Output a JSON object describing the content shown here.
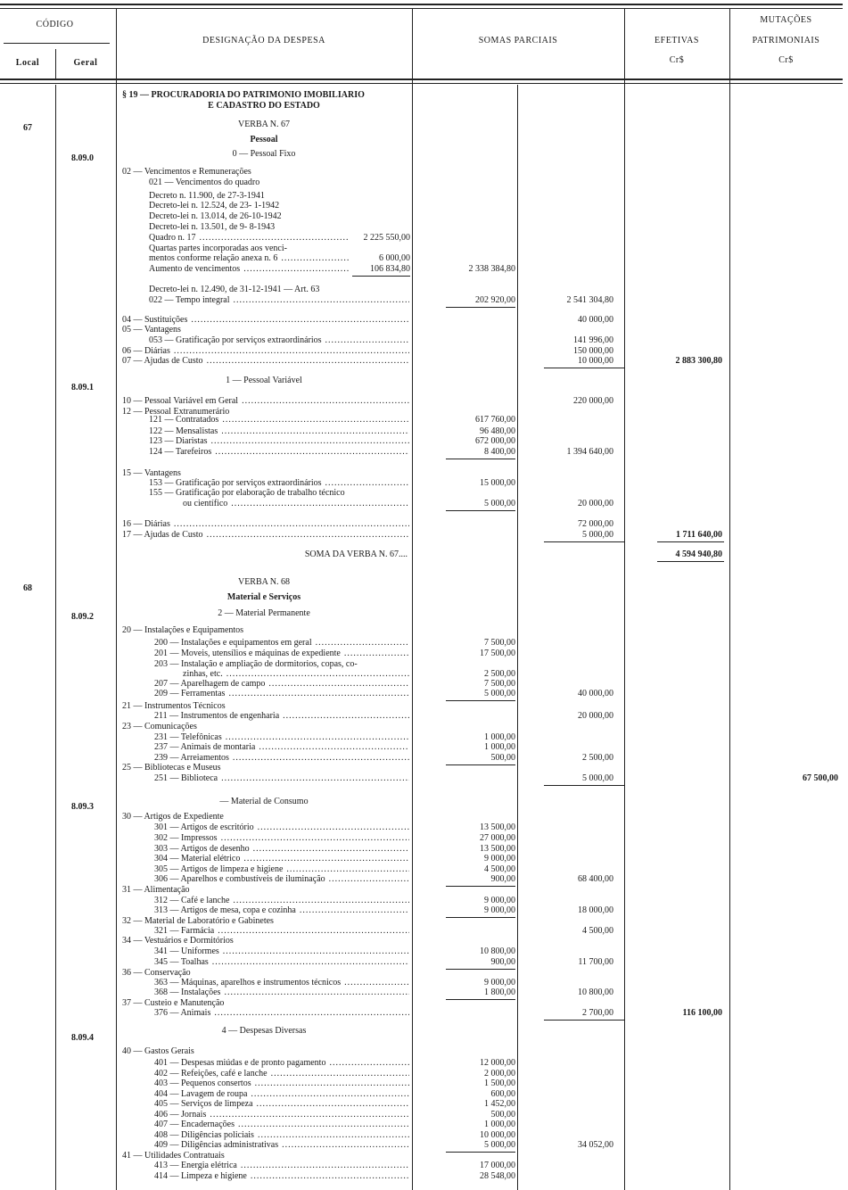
{
  "header": {
    "codigo": "CÓDIGO",
    "local": "Local",
    "geral": "Geral",
    "designacao": "DESIGNAÇÃO DA DESPESA",
    "somas_parciais": "SOMAS PARCIAIS",
    "efetivas": "EFETIVAS",
    "efetivas_unit": "Cr$",
    "mutacoes": "MUTAÇÕES",
    "patrimoniais": "PATRIMONIAIS",
    "mutacoes_unit": "Cr$"
  },
  "codes": {
    "local": [
      "67",
      "68"
    ],
    "geral": [
      "8.09.0",
      "8.09.1",
      "8.09.2",
      "8.09.3",
      "8.09.4"
    ]
  },
  "rows": [
    {
      "text": "§ 19 — PROCURADORIA DO PATRIMONIO IMOBILIARIO",
      "type": "title"
    },
    {
      "text": "E CADASTRO DO ESTADO",
      "type": "centerbold"
    },
    {
      "text": "VERBA N. 67",
      "type": "center"
    },
    {
      "text": "Pessoal",
      "type": "centerbold"
    },
    {
      "text": "0 — Pessoal Fixo",
      "type": "center"
    },
    {
      "text": "02 — Vencimentos e Remunerações",
      "level": 0
    },
    {
      "text": "021 — Vencimentos do quadro",
      "level": 1
    },
    {
      "text": "Decreto n. 11.900, de 27-3-1941",
      "level": 1
    },
    {
      "text": "Decreto-lei n. 12.524, de 23- 1-1942",
      "level": 1
    },
    {
      "text": "Decreto-lei n. 13.014, de 26-10-1942",
      "level": 1
    },
    {
      "text": "Decreto-lei n. 13.501, de 9- 8-1943",
      "level": 1
    },
    {
      "text": "Quadro n. 17",
      "level": 1,
      "dots": true,
      "inner": "2 225 550,00"
    },
    {
      "text": "Quartas partes incorporadas aos venci-",
      "level": 1
    },
    {
      "text": "mentos conforme relação anexa n. 6",
      "level": 1,
      "dots": true,
      "inner": "6 000,00"
    },
    {
      "text": "Aumento de vencimentos",
      "level": 1,
      "dots": true,
      "inner": "106 834,80",
      "sp1": "2 338 384,80"
    },
    {
      "text": "Decreto-lei n. 12.490, de 31-12-1941 — Art. 63",
      "level": 1
    },
    {
      "text": "022 — Tempo integral",
      "level": 1,
      "dots": true,
      "sp1": "202 920,00",
      "sp2": "2 541 304,80"
    },
    {
      "text": "04 — Sustituições",
      "level": 0,
      "dots": true,
      "sp2": "40 000,00"
    },
    {
      "text": "05 — Vantagens",
      "level": 0
    },
    {
      "text": "053 — Gratificação por serviços extraordinários",
      "level": 1,
      "dots": true,
      "sp2": "141 996,00"
    },
    {
      "text": "06 — Diárias",
      "level": 0,
      "dots": true,
      "sp2": "150 000,00"
    },
    {
      "text": "07 — Ajudas de Custo",
      "level": 0,
      "dots": true,
      "sp2": "10 000,00",
      "ef": "2 883 300,80"
    },
    {
      "text": "1 — Pessoal Variável",
      "type": "center"
    },
    {
      "text": "10 — Pessoal Variável em Geral",
      "level": 0,
      "dots": true,
      "sp2": "220 000,00"
    },
    {
      "text": "12 — Pessoal Extranumerário",
      "level": 0
    },
    {
      "text": "121 — Contratados",
      "level": 1,
      "dots": true,
      "sp1": "617 760,00"
    },
    {
      "text": "122 — Mensalistas",
      "level": 1,
      "dots": true,
      "sp1": "96 480,00"
    },
    {
      "text": "123 — Diaristas",
      "level": 1,
      "dots": true,
      "sp1": "672 000,00"
    },
    {
      "text": "124 — Tarefeiros",
      "level": 1,
      "dots": true,
      "sp1": "8 400,00",
      "sp2": "1 394 640,00"
    },
    {
      "text": "15 — Vantagens",
      "level": 0
    },
    {
      "text": "153 — Gratificação por serviços extraordinários",
      "level": 1,
      "dots": true,
      "sp1": "15 000,00"
    },
    {
      "text": "155 — Gratificação por elaboração de trabalho técnico",
      "level": 1
    },
    {
      "text": "ou científico",
      "level": 3,
      "dots": true,
      "sp1": "5 000,00",
      "sp2": "20 000,00"
    },
    {
      "text": "16 — Diárias",
      "level": 0,
      "dots": true,
      "sp2": "72 000,00"
    },
    {
      "text": "17 — Ajudas de Custo",
      "level": 0,
      "dots": true,
      "sp2": "5 000,00",
      "ef": "1 711 640,00"
    },
    {
      "text": "SOMA DA VERBA N. 67....",
      "type": "right",
      "ef": "4 594 940,80"
    },
    {
      "text": "VERBA N. 68",
      "type": "center"
    },
    {
      "text": "Material e Serviços",
      "type": "centerbold"
    },
    {
      "text": "2 — Material Permanente",
      "type": "center"
    },
    {
      "text": "20 — Instalações e Equipamentos",
      "level": 0
    },
    {
      "text": "200 — Instalações e equipamentos em geral",
      "level": 2,
      "dots": true,
      "sp1": "7 500,00"
    },
    {
      "text": "201 — Moveis, utensílios e máquinas de expediente",
      "level": 2,
      "dots": true,
      "sp1": "17 500,00"
    },
    {
      "text": "203 — Instalação e ampliação de dormitorios, copas, co-",
      "level": 2
    },
    {
      "text": "zinhas, etc.",
      "level": 3,
      "dots": true,
      "sp1": "2 500,00"
    },
    {
      "text": "207 — Aparelhagem de campo",
      "level": 2,
      "dots": true,
      "sp1": "7 500,00"
    },
    {
      "text": "209 — Ferramentas",
      "level": 2,
      "dots": true,
      "sp1": "5 000,00",
      "sp2": "40 000,00"
    },
    {
      "text": "21 — Instrumentos Técnicos",
      "level": 0
    },
    {
      "text": "211 — Instrumentos de engenharia",
      "level": 2,
      "dots": true,
      "sp2": "20 000,00"
    },
    {
      "text": "23 — Comunicações",
      "level": 0
    },
    {
      "text": "231 — Telefônicas",
      "level": 2,
      "dots": true,
      "sp1": "1 000,00"
    },
    {
      "text": "237 — Animais de montaria",
      "level": 2,
      "dots": true,
      "sp1": "1 000,00"
    },
    {
      "text": "239 — Arreiamentos",
      "level": 2,
      "dots": true,
      "sp1": "500,00",
      "sp2": "2 500,00"
    },
    {
      "text": "25 — Bibliotecas e Museus",
      "level": 0
    },
    {
      "text": "251 — Biblioteca",
      "level": 2,
      "dots": true,
      "sp2": "5 000,00",
      "mut": "67 500,00"
    },
    {
      "text": "— Material de Consumo",
      "type": "center"
    },
    {
      "text": "30 — Artigos de Expediente",
      "level": 0
    },
    {
      "text": "301 — Artigos de escritório",
      "level": 2,
      "dots": true,
      "sp1": "13 500,00"
    },
    {
      "text": "302 — Impressos",
      "level": 2,
      "dots": true,
      "sp1": "27 000,00"
    },
    {
      "text": "303 — Artigos de desenho",
      "level": 2,
      "dots": true,
      "sp1": "13 500,00"
    },
    {
      "text": "304 — Material elétrico",
      "level": 2,
      "dots": true,
      "sp1": "9 000,00"
    },
    {
      "text": "305 — Artigos de limpeza e higiene",
      "level": 2,
      "dots": true,
      "sp1": "4 500,00"
    },
    {
      "text": "306 — Aparelhos e combustíveis de iluminação",
      "level": 2,
      "dots": true,
      "sp1": "900,00",
      "sp2": "68 400,00"
    },
    {
      "text": "31 — Alimentação",
      "level": 0
    },
    {
      "text": "312 — Café e lanche",
      "level": 2,
      "dots": true,
      "sp1": "9 000,00"
    },
    {
      "text": "313 — Artigos de mesa, copa e cozinha",
      "level": 2,
      "dots": true,
      "sp1": "9 000,00",
      "sp2": "18 000,00"
    },
    {
      "text": "32 — Material de Laboratório e Gabinetes",
      "level": 0
    },
    {
      "text": "321 — Farmácia",
      "level": 2,
      "dots": true,
      "sp2": "4 500,00"
    },
    {
      "text": "34 — Vestuários e Dormitórios",
      "level": 0
    },
    {
      "text": "341 — Uniformes",
      "level": 2,
      "dots": true,
      "sp1": "10 800,00"
    },
    {
      "text": "345 — Toalhas",
      "level": 2,
      "dots": true,
      "sp1": "900,00",
      "sp2": "11 700,00"
    },
    {
      "text": "36 — Conservação",
      "level": 0
    },
    {
      "text": "363 — Máquinas, aparelhos e instrumentos técnicos",
      "level": 2,
      "dots": true,
      "sp1": "9 000,00"
    },
    {
      "text": "368 — Instalações",
      "level": 2,
      "dots": true,
      "sp1": "1 800,00",
      "sp2": "10 800,00"
    },
    {
      "text": "37 — Custeio e Manutenção",
      "level": 0
    },
    {
      "text": "376 — Animais",
      "level": 2,
      "dots": true,
      "sp2": "2 700,00",
      "ef": "116 100,00"
    },
    {
      "text": "4 — Despesas Diversas",
      "type": "center"
    },
    {
      "text": "40 — Gastos Gerais",
      "level": 0
    },
    {
      "text": "401 — Despesas miúdas e de pronto pagamento",
      "level": 2,
      "dots": true,
      "sp1": "12 000,00"
    },
    {
      "text": "402 — Refeições, café e lanche",
      "level": 2,
      "dots": true,
      "sp1": "2 000,00"
    },
    {
      "text": "403 — Pequenos consertos",
      "level": 2,
      "dots": true,
      "sp1": "1 500,00"
    },
    {
      "text": "404 — Lavagem de roupa",
      "level": 2,
      "dots": true,
      "sp1": "600,00"
    },
    {
      "text": "405 — Serviços de limpeza",
      "level": 2,
      "dots": true,
      "sp1": "1 452,00"
    },
    {
      "text": "406 — Jornais",
      "level": 2,
      "dots": true,
      "sp1": "500,00"
    },
    {
      "text": "407 — Encadernações",
      "level": 2,
      "dots": true,
      "sp1": "1 000,00"
    },
    {
      "text": "408 — Diligências policiais",
      "level": 2,
      "dots": true,
      "sp1": "10 000,00"
    },
    {
      "text": "409 — Diligências administrativas",
      "level": 2,
      "dots": true,
      "sp1": "5 000,00",
      "sp2": "34 052,00"
    },
    {
      "text": "41 — Utilidades Contratuais",
      "level": 0
    },
    {
      "text": "413 — Energia elétrica",
      "level": 2,
      "dots": true,
      "sp1": "17 000,00"
    },
    {
      "text": "414 — Limpeza e higiene",
      "level": 2,
      "dots": true,
      "sp1": "28 548,00"
    }
  ]
}
